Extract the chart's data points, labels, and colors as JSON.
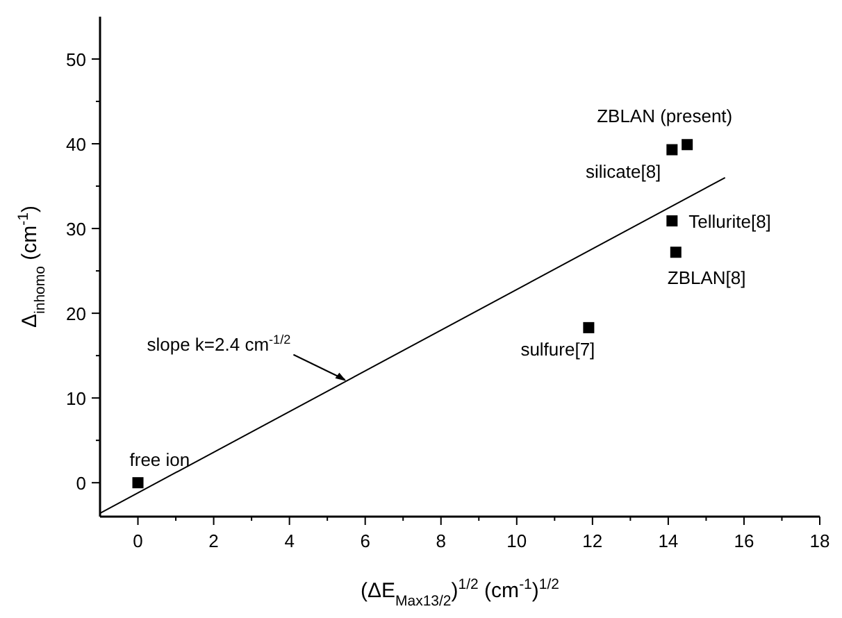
{
  "chart_data": {
    "type": "scatter",
    "xlabel": "(ΔE$_{Max13/2}$)$^{1/2}$ (cm$^{-1}$)$^{1/2}$",
    "ylabel": "Δ$_{inhomo}$ (cm$^{-1}$)",
    "xlim": [
      -1,
      18
    ],
    "ylim": [
      -4,
      55
    ],
    "xticks": [
      0,
      {
        "value": 1,
        "label": null
      },
      2,
      {
        "value": 3,
        "label": null
      },
      4,
      {
        "value": 5,
        "label": null
      },
      6,
      {
        "value": 7,
        "label": null
      },
      8,
      {
        "value": 9,
        "label": null
      },
      10,
      {
        "value": 11,
        "label": null
      },
      12,
      {
        "value": 13,
        "label": null
      },
      14,
      {
        "value": 15,
        "label": null
      },
      16,
      {
        "value": 17,
        "label": null
      },
      18
    ],
    "yticks": [
      0,
      {
        "value": 5,
        "label": null
      },
      10,
      {
        "value": 15,
        "label": null
      },
      20,
      {
        "value": 25,
        "label": null
      },
      30,
      {
        "value": 35,
        "label": null
      },
      40,
      {
        "value": 45,
        "label": null
      },
      50
    ],
    "grid": false,
    "series": [
      {
        "marker": "square",
        "color": "#000000",
        "x": [
          0,
          14.1,
          14.5,
          14.1,
          14.2,
          11.9
        ],
        "values": [
          0,
          39.3,
          39.9,
          30.9,
          27.2,
          18.3
        ]
      },
      {
        "type": "line",
        "color": "#000000",
        "x": [
          -1,
          15.5
        ],
        "values": [
          -3.6,
          36
        ]
      }
    ],
    "annotations": [
      {
        "text": "free ion",
        "x": 0,
        "y": 0
      },
      {
        "text": "silicate[8]",
        "x": 14.1,
        "y": 39.3
      },
      {
        "text": "ZBLAN (present)",
        "x": 14.5,
        "y": 39.9
      },
      {
        "text": "Tellurite[8]",
        "x": 14.1,
        "y": 30.9
      },
      {
        "text": "ZBLAN[8]",
        "x": 14.2,
        "y": 27.2
      },
      {
        "text": "sulfure[7]",
        "x": 11.9,
        "y": 18.3
      },
      {
        "text": "slope k=2.4 cm$^{-1/2}$",
        "x": 5.5,
        "y": 12
      }
    ]
  }
}
